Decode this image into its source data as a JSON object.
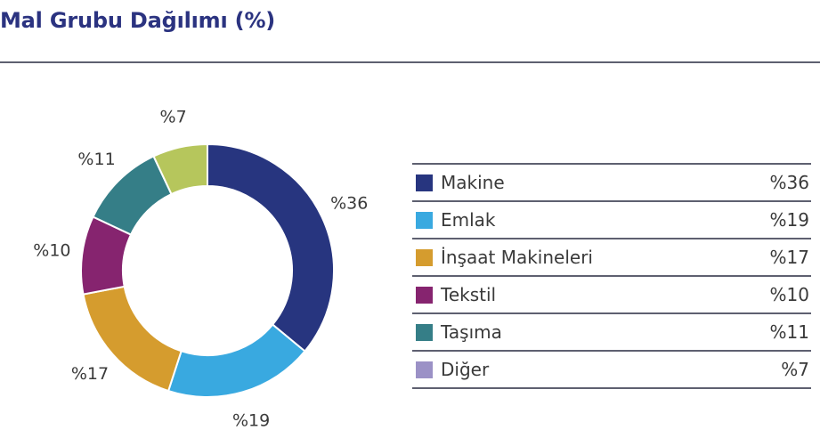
{
  "title": "Mal Grubu Dağılımı (%)",
  "chart_data": {
    "type": "pie",
    "variant": "donut",
    "title": "Mal Grubu Dağılımı (%)",
    "legend_position": "right",
    "slices": [
      {
        "name": "Makine",
        "value": 36,
        "label": "%36",
        "color": "#27357f"
      },
      {
        "name": "Emlak",
        "value": 19,
        "label": "%19",
        "color": "#39a9e0"
      },
      {
        "name": "İnşaat Makineleri",
        "value": 17,
        "label": "%17",
        "color": "#d59c2e"
      },
      {
        "name": "Tekstil",
        "value": 10,
        "label": "%10",
        "color": "#86246f"
      },
      {
        "name": "Taşıma",
        "value": 11,
        "label": "%11",
        "color": "#357e87"
      },
      {
        "name": "Diğer",
        "value": 7,
        "label": "%7",
        "color": "#b6c65c"
      }
    ]
  },
  "legend": [
    {
      "name": "Makine",
      "value": "%36",
      "color": "#27357f"
    },
    {
      "name": "Emlak",
      "value": "%19",
      "color": "#39a9e0"
    },
    {
      "name": "İnşaat Makineleri",
      "value": "%17",
      "color": "#d59c2e"
    },
    {
      "name": "Tekstil",
      "value": "%10",
      "color": "#86246f"
    },
    {
      "name": "Taşıma",
      "value": "%11",
      "color": "#357e87"
    },
    {
      "name": "Diğer",
      "value": "%7",
      "color": "#9b91c6"
    }
  ]
}
